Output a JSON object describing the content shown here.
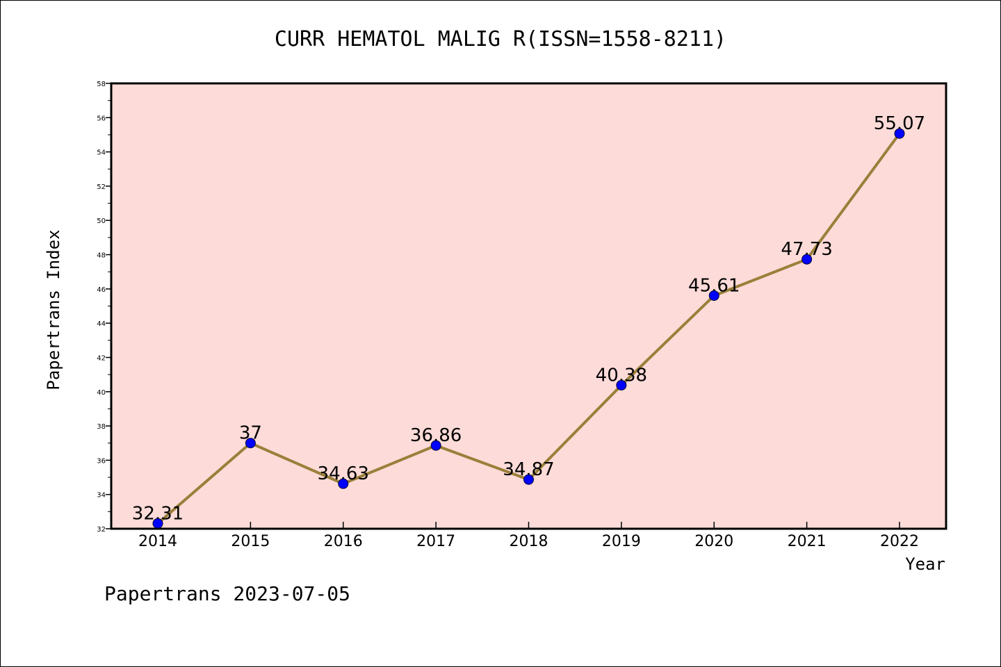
{
  "chart_data": {
    "type": "line",
    "title": "CURR HEMATOL MALIG R(ISSN=1558-8211)",
    "xlabel": "Year",
    "ylabel": "Papertrans Index",
    "categories": [
      "2014",
      "2015",
      "2016",
      "2017",
      "2018",
      "2019",
      "2020",
      "2021",
      "2022"
    ],
    "series": [
      {
        "values": [
          32.31,
          37,
          34.63,
          36.86,
          34.87,
          40.38,
          45.61,
          47.73,
          55.07
        ],
        "labels": [
          "32.31",
          "37",
          "34.63",
          "36.86",
          "34.87",
          "40.38",
          "45.61",
          "47.73",
          "55.07"
        ],
        "line_color": "#9a7f3a",
        "marker_color": "#0000ff"
      }
    ],
    "ylim": [
      32,
      58
    ],
    "yticks": [
      "32",
      "34",
      "36",
      "38",
      "40",
      "42",
      "44",
      "46",
      "48",
      "50",
      "52",
      "54",
      "56",
      "58"
    ],
    "plot_background": "#fddbd8",
    "grid": false,
    "legend": "none"
  },
  "footer": "Papertrans 2023-07-05"
}
